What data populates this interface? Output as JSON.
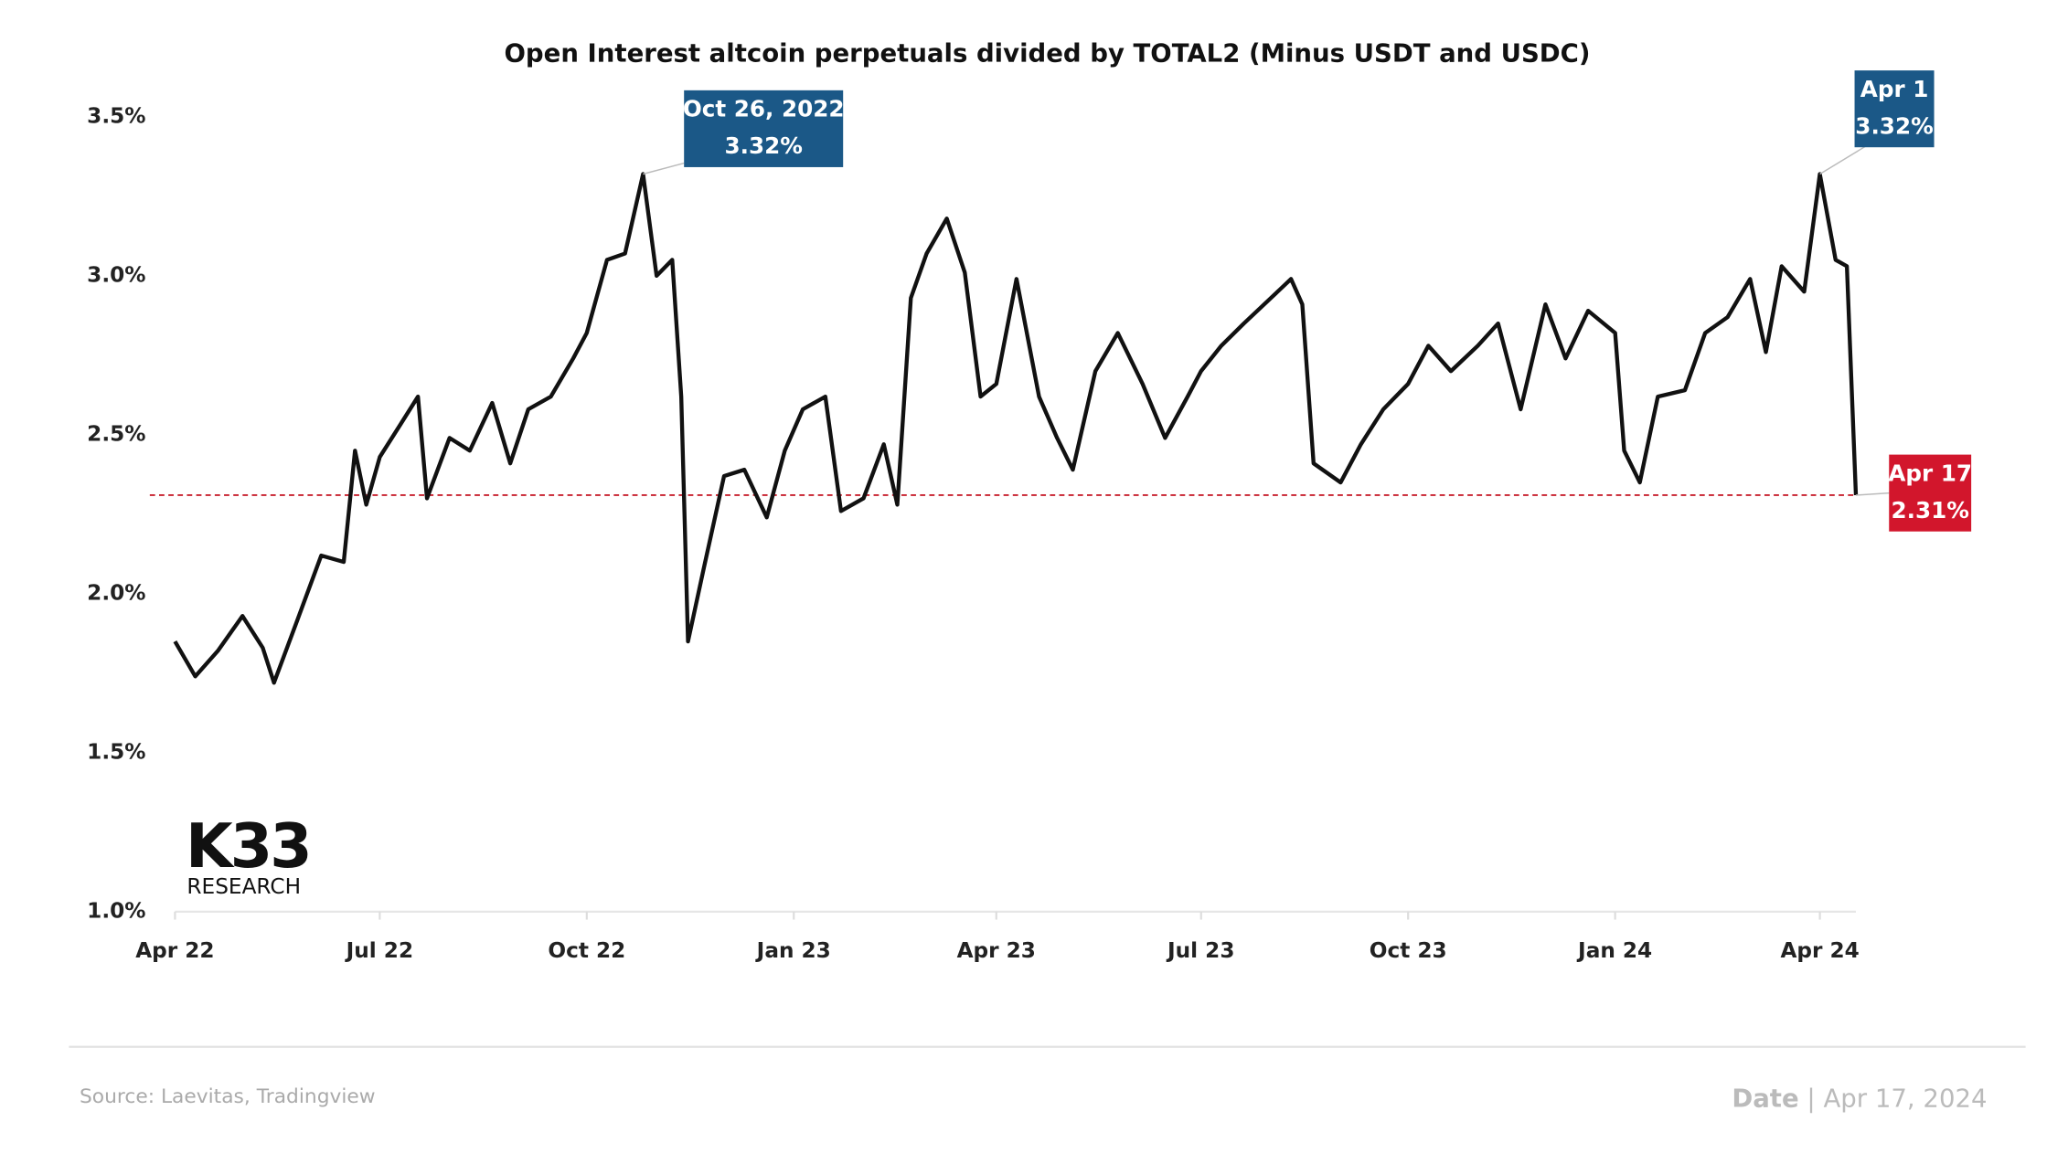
{
  "chart_data": {
    "type": "line",
    "title": "Open Interest altcoin perpetuals divided by TOTAL2 (Minus USDT and USDC)",
    "color": "#111111",
    "x": [
      "2022-04-01",
      "2022-04-10",
      "2022-04-20",
      "2022-05-01",
      "2022-05-10",
      "2022-05-15",
      "2022-05-25",
      "2022-06-05",
      "2022-06-15",
      "2022-06-20",
      "2022-06-25",
      "2022-07-01",
      "2022-07-10",
      "2022-07-18",
      "2022-07-22",
      "2022-08-01",
      "2022-08-10",
      "2022-08-20",
      "2022-08-28",
      "2022-09-05",
      "2022-09-15",
      "2022-09-25",
      "2022-10-01",
      "2022-10-10",
      "2022-10-18",
      "2022-10-26",
      "2022-11-01",
      "2022-11-08",
      "2022-11-12",
      "2022-11-15",
      "2022-11-22",
      "2022-12-01",
      "2022-12-10",
      "2022-12-20",
      "2022-12-28",
      "2023-01-05",
      "2023-01-15",
      "2023-01-22",
      "2023-02-01",
      "2023-02-10",
      "2023-02-16",
      "2023-02-22",
      "2023-03-01",
      "2023-03-10",
      "2023-03-18",
      "2023-03-25",
      "2023-04-01",
      "2023-04-10",
      "2023-04-20",
      "2023-04-28",
      "2023-05-05",
      "2023-05-15",
      "2023-05-25",
      "2023-06-05",
      "2023-06-15",
      "2023-06-25",
      "2023-07-01",
      "2023-07-10",
      "2023-07-20",
      "2023-08-01",
      "2023-08-10",
      "2023-08-15",
      "2023-08-20",
      "2023-09-01",
      "2023-09-10",
      "2023-09-20",
      "2023-10-01",
      "2023-10-10",
      "2023-10-20",
      "2023-11-01",
      "2023-11-10",
      "2023-11-20",
      "2023-12-01",
      "2023-12-10",
      "2023-12-20",
      "2024-01-01",
      "2024-01-05",
      "2024-01-12",
      "2024-01-20",
      "2024-02-01",
      "2024-02-10",
      "2024-02-20",
      "2024-03-01",
      "2024-03-08",
      "2024-03-15",
      "2024-03-25",
      "2024-04-01",
      "2024-04-08",
      "2024-04-13",
      "2024-04-17"
    ],
    "values": [
      1.85,
      1.74,
      1.82,
      1.93,
      1.83,
      1.72,
      1.91,
      2.12,
      2.1,
      2.45,
      2.28,
      2.43,
      2.53,
      2.62,
      2.3,
      2.49,
      2.45,
      2.6,
      2.41,
      2.58,
      2.62,
      2.74,
      2.82,
      3.05,
      3.07,
      3.32,
      3.0,
      3.05,
      2.62,
      1.85,
      2.08,
      2.37,
      2.39,
      2.24,
      2.45,
      2.58,
      2.62,
      2.26,
      2.3,
      2.47,
      2.28,
      2.93,
      3.07,
      3.18,
      3.01,
      2.62,
      2.66,
      2.99,
      2.62,
      2.49,
      2.39,
      2.7,
      2.82,
      2.66,
      2.49,
      2.62,
      2.7,
      2.78,
      2.85,
      2.93,
      2.99,
      2.91,
      2.41,
      2.35,
      2.47,
      2.58,
      2.66,
      2.78,
      2.7,
      2.78,
      2.85,
      2.58,
      2.91,
      2.74,
      2.89,
      2.82,
      2.45,
      2.35,
      2.62,
      2.64,
      2.82,
      2.87,
      2.99,
      2.76,
      3.03,
      2.95,
      3.32,
      3.05,
      3.03,
      2.31
    ],
    "xlim": [
      "2022-04-01",
      "2024-04-17"
    ],
    "xticks": [
      {
        "value": "2022-04-01",
        "label": "Apr 22"
      },
      {
        "value": "2022-07-01",
        "label": "Jul 22"
      },
      {
        "value": "2022-10-01",
        "label": "Oct 22"
      },
      {
        "value": "2023-01-01",
        "label": "Jan 23"
      },
      {
        "value": "2023-04-01",
        "label": "Apr 23"
      },
      {
        "value": "2023-07-01",
        "label": "Jul 23"
      },
      {
        "value": "2023-10-01",
        "label": "Oct 23"
      },
      {
        "value": "2024-01-01",
        "label": "Jan 24"
      },
      {
        "value": "2024-04-01",
        "label": "Apr 24"
      }
    ],
    "ylim": [
      1.0,
      3.5
    ],
    "yticks": [
      {
        "value": 1.0,
        "label": "1.0%"
      },
      {
        "value": 1.5,
        "label": "1.5%"
      },
      {
        "value": 2.0,
        "label": "2.0%"
      },
      {
        "value": 2.5,
        "label": "2.5%"
      },
      {
        "value": 3.0,
        "label": "3.0%"
      },
      {
        "value": 3.5,
        "label": "3.5%"
      }
    ],
    "annotations": [
      {
        "x": "2022-10-26",
        "y": 3.32,
        "date_label": "Oct 26, 2022",
        "value_label": "3.32%",
        "color": "#1b5887"
      },
      {
        "x": "2024-04-01",
        "y": 3.32,
        "date_label": "Apr 1",
        "value_label": "3.32%",
        "color": "#1b5887"
      },
      {
        "x": "2024-04-17",
        "y": 2.31,
        "date_label": "Apr 17",
        "value_label": "2.31%",
        "color": "#d2162c"
      }
    ],
    "reference_line_color": "#c8202f"
  },
  "logo": {
    "name": "K33",
    "subtitle": "RESEARCH"
  },
  "footer": {
    "source": "Source:  Laevitas, Tradingview",
    "date_label": "Date",
    "separator": "|",
    "date": "Apr 17, 2024"
  }
}
